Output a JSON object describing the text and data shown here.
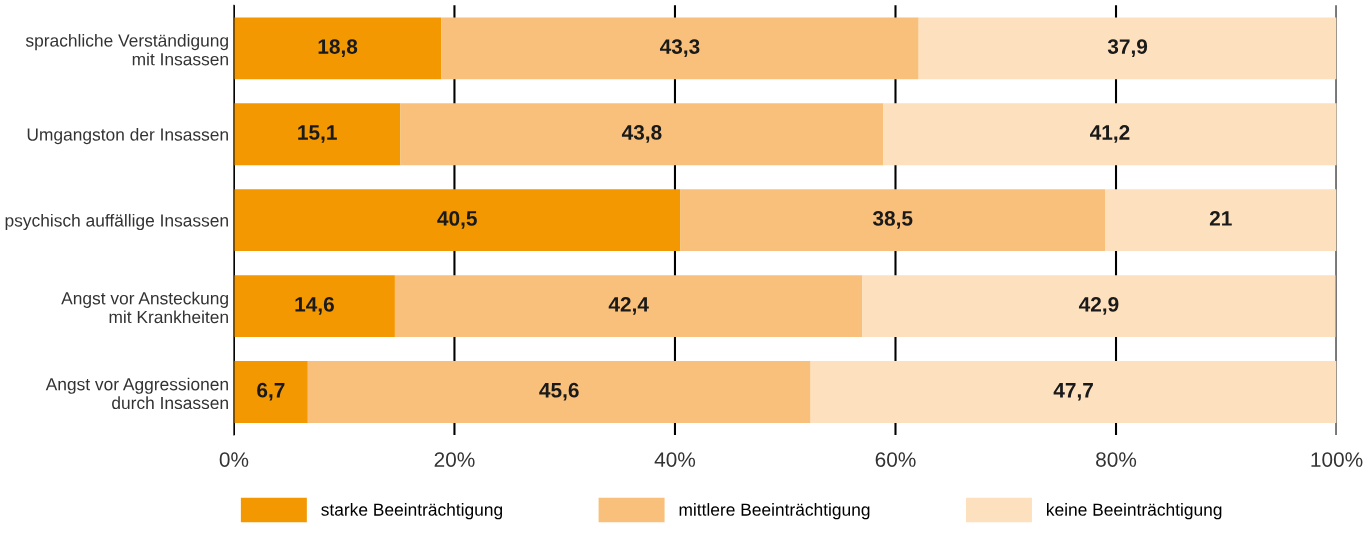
{
  "chart_data": {
    "type": "bar",
    "orientation": "horizontal",
    "stacked": true,
    "categories": [
      "sprachliche Verständigung\nmit Insassen",
      "Umgangston der Insassen",
      "psychisch auffällige Insassen",
      "Angst vor Ansteckung\nmit Krankheiten",
      "Angst vor Aggressionen\ndurch Insassen"
    ],
    "series": [
      {
        "name": "starke Beeinträchtigung",
        "color": "#f39800",
        "values": [
          18.8,
          15.1,
          40.5,
          14.6,
          6.7
        ],
        "value_labels": [
          "18,8",
          "15,1",
          "40,5",
          "14,6",
          "6,7"
        ]
      },
      {
        "name": "mittlere Beeinträchtigung",
        "color": "#f8c07a",
        "values": [
          43.3,
          43.8,
          38.5,
          42.4,
          45.6
        ],
        "value_labels": [
          "43,3",
          "43,8",
          "38,5",
          "42,4",
          "45,6"
        ]
      },
      {
        "name": "keine Beeinträchtigung",
        "color": "#fde0bd",
        "values": [
          37.9,
          41.2,
          21,
          42.9,
          47.7
        ],
        "value_labels": [
          "37,9",
          "41,2",
          "21",
          "42,9",
          "47,7"
        ]
      }
    ],
    "xlim": [
      0,
      100
    ],
    "xticks": [
      {
        "value": 0,
        "label": "0%"
      },
      {
        "value": 20,
        "label": "20%"
      },
      {
        "value": 40,
        "label": "40%"
      },
      {
        "value": 60,
        "label": "60%"
      },
      {
        "value": 80,
        "label": "80%"
      },
      {
        "value": 100,
        "label": "100%"
      }
    ],
    "grid": "x",
    "legend": "bottom"
  }
}
